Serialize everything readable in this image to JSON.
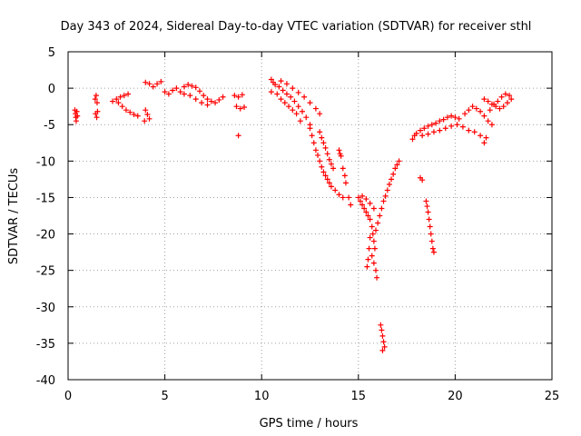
{
  "chart_data": {
    "type": "scatter",
    "title": "Day 343 of 2024, Sidereal Day-to-day VTEC variation (SDTVAR) for receiver sthl",
    "xlabel": "GPS time / hours",
    "ylabel": "SDTVAR / TECUs",
    "xlim": [
      0,
      25
    ],
    "ylim": [
      -40,
      5
    ],
    "xticks": [
      0,
      5,
      10,
      15,
      20,
      25
    ],
    "xtick_labels": [
      "0",
      "5",
      "10",
      "15",
      "20",
      "25"
    ],
    "yticks": [
      5,
      0,
      -5,
      -10,
      -15,
      -20,
      -25,
      -30,
      -35,
      -40
    ],
    "ytick_labels": [
      "5",
      "0",
      "-5",
      "-10",
      "-15",
      "-20",
      "-25",
      "-30",
      "-35",
      "-40"
    ],
    "grid": true,
    "marker": "+",
    "marker_color": "#ff0000",
    "series": [
      {
        "name": "sthl",
        "points": [
          [
            0.35,
            -3.0
          ],
          [
            0.38,
            -3.5
          ],
          [
            0.4,
            -4.0
          ],
          [
            0.42,
            -4.5
          ],
          [
            0.45,
            -3.2
          ],
          [
            0.48,
            -3.8
          ],
          [
            1.4,
            -1.5
          ],
          [
            1.45,
            -1.0
          ],
          [
            1.5,
            -2.0
          ],
          [
            1.42,
            -3.5
          ],
          [
            1.48,
            -4.0
          ],
          [
            1.52,
            -3.2
          ],
          [
            2.3,
            -1.8
          ],
          [
            2.5,
            -1.5
          ],
          [
            2.7,
            -1.2
          ],
          [
            2.9,
            -1.0
          ],
          [
            3.1,
            -0.8
          ],
          [
            2.6,
            -2.0
          ],
          [
            2.8,
            -2.5
          ],
          [
            3.0,
            -3.0
          ],
          [
            3.2,
            -3.3
          ],
          [
            3.4,
            -3.6
          ],
          [
            3.6,
            -3.8
          ],
          [
            4.0,
            0.8
          ],
          [
            4.2,
            0.6
          ],
          [
            4.4,
            0.2
          ],
          [
            4.6,
            0.6
          ],
          [
            4.8,
            0.9
          ],
          [
            4.0,
            -3.0
          ],
          [
            4.1,
            -3.6
          ],
          [
            4.2,
            -4.2
          ],
          [
            3.95,
            -4.5
          ],
          [
            5.0,
            -0.5
          ],
          [
            5.2,
            -0.8
          ],
          [
            5.4,
            -0.3
          ],
          [
            5.6,
            0.0
          ],
          [
            5.8,
            -0.5
          ],
          [
            6.0,
            0.2
          ],
          [
            6.2,
            0.5
          ],
          [
            6.4,
            0.3
          ],
          [
            6.6,
            0.1
          ],
          [
            6.8,
            -0.4
          ],
          [
            7.0,
            -1.0
          ],
          [
            7.2,
            -1.5
          ],
          [
            7.4,
            -1.8
          ],
          [
            7.6,
            -2.0
          ],
          [
            7.8,
            -1.6
          ],
          [
            8.0,
            -1.2
          ],
          [
            6.0,
            -0.8
          ],
          [
            6.3,
            -1.0
          ],
          [
            6.6,
            -1.5
          ],
          [
            6.9,
            -2.0
          ],
          [
            7.2,
            -2.3
          ],
          [
            8.6,
            -1.0
          ],
          [
            8.8,
            -1.2
          ],
          [
            9.0,
            -0.9
          ],
          [
            8.7,
            -2.5
          ],
          [
            8.9,
            -2.8
          ],
          [
            9.1,
            -2.6
          ],
          [
            8.8,
            -6.5
          ],
          [
            10.5,
            1.2
          ],
          [
            10.6,
            0.8
          ],
          [
            10.7,
            0.5
          ],
          [
            10.9,
            0.2
          ],
          [
            11.1,
            -0.3
          ],
          [
            11.3,
            -0.8
          ],
          [
            11.5,
            -1.2
          ],
          [
            11.7,
            -1.8
          ],
          [
            11.9,
            -2.5
          ],
          [
            12.1,
            -3.2
          ],
          [
            12.3,
            -4.0
          ],
          [
            12.5,
            -5.0
          ],
          [
            10.5,
            -0.5
          ],
          [
            10.8,
            -0.8
          ],
          [
            11.0,
            -1.5
          ],
          [
            11.2,
            -2.0
          ],
          [
            11.4,
            -2.5
          ],
          [
            11.6,
            -3.0
          ],
          [
            11.8,
            -3.5
          ],
          [
            12.0,
            -4.5
          ],
          [
            11.0,
            1.0
          ],
          [
            11.3,
            0.6
          ],
          [
            11.6,
            0.0
          ],
          [
            11.9,
            -0.6
          ],
          [
            12.2,
            -1.2
          ],
          [
            12.5,
            -2.0
          ],
          [
            12.8,
            -2.8
          ],
          [
            13.0,
            -3.5
          ],
          [
            12.5,
            -5.5
          ],
          [
            12.6,
            -6.5
          ],
          [
            12.7,
            -7.5
          ],
          [
            12.8,
            -8.5
          ],
          [
            12.9,
            -9.2
          ],
          [
            13.0,
            -10.0
          ],
          [
            13.1,
            -10.8
          ],
          [
            13.2,
            -11.5
          ],
          [
            13.3,
            -12.0
          ],
          [
            13.4,
            -12.5
          ],
          [
            13.5,
            -13.0
          ],
          [
            13.6,
            -13.5
          ],
          [
            13.8,
            -14.0
          ],
          [
            14.0,
            -14.6
          ],
          [
            14.2,
            -15.0
          ],
          [
            13.0,
            -6.0
          ],
          [
            13.1,
            -6.8
          ],
          [
            13.2,
            -7.5
          ],
          [
            13.3,
            -8.2
          ],
          [
            13.4,
            -9.0
          ],
          [
            13.5,
            -9.8
          ],
          [
            13.6,
            -10.4
          ],
          [
            13.7,
            -11.0
          ],
          [
            14.0,
            -8.5
          ],
          [
            14.05,
            -9.0
          ],
          [
            14.1,
            -9.3
          ],
          [
            14.2,
            -11.0
          ],
          [
            14.3,
            -12.0
          ],
          [
            14.35,
            -13.0
          ],
          [
            14.5,
            -15.0
          ],
          [
            14.6,
            -16.0
          ],
          [
            15.0,
            -15.0
          ],
          [
            15.1,
            -15.5
          ],
          [
            15.2,
            -16.0
          ],
          [
            15.3,
            -16.5
          ],
          [
            15.4,
            -17.0
          ],
          [
            15.5,
            -17.5
          ],
          [
            15.6,
            -18.0
          ],
          [
            15.7,
            -19.0
          ],
          [
            15.75,
            -20.0
          ],
          [
            15.8,
            -21.0
          ],
          [
            15.85,
            -22.0
          ],
          [
            15.6,
            -20.5
          ],
          [
            15.55,
            -22.0
          ],
          [
            15.5,
            -23.5
          ],
          [
            15.45,
            -24.5
          ],
          [
            15.7,
            -23.0
          ],
          [
            15.8,
            -24.0
          ],
          [
            15.9,
            -25.0
          ],
          [
            15.95,
            -26.0
          ],
          [
            15.9,
            -19.5
          ],
          [
            16.0,
            -18.5
          ],
          [
            16.1,
            -17.5
          ],
          [
            16.2,
            -16.5
          ],
          [
            16.3,
            -15.5
          ],
          [
            16.4,
            -14.8
          ],
          [
            16.5,
            -14.0
          ],
          [
            16.6,
            -13.2
          ],
          [
            16.7,
            -12.5
          ],
          [
            16.8,
            -11.8
          ],
          [
            16.9,
            -11.0
          ],
          [
            17.0,
            -10.5
          ],
          [
            17.1,
            -10.0
          ],
          [
            15.2,
            -14.8
          ],
          [
            15.4,
            -15.2
          ],
          [
            15.6,
            -15.8
          ],
          [
            15.8,
            -16.5
          ],
          [
            16.15,
            -32.5
          ],
          [
            16.2,
            -33.2
          ],
          [
            16.25,
            -34.0
          ],
          [
            16.3,
            -34.8
          ],
          [
            16.35,
            -35.5
          ],
          [
            16.25,
            -36.0
          ],
          [
            18.2,
            -12.3
          ],
          [
            18.3,
            -12.6
          ],
          [
            18.5,
            -15.5
          ],
          [
            18.55,
            -16.2
          ],
          [
            18.6,
            -17.0
          ],
          [
            18.65,
            -18.0
          ],
          [
            18.7,
            -19.0
          ],
          [
            18.75,
            -20.0
          ],
          [
            18.8,
            -21.0
          ],
          [
            18.85,
            -22.0
          ],
          [
            18.9,
            -22.5
          ],
          [
            17.8,
            -7.0
          ],
          [
            17.9,
            -6.5
          ],
          [
            18.0,
            -6.2
          ],
          [
            18.2,
            -5.8
          ],
          [
            18.4,
            -5.5
          ],
          [
            18.6,
            -5.2
          ],
          [
            18.8,
            -5.0
          ],
          [
            19.0,
            -4.8
          ],
          [
            19.2,
            -4.5
          ],
          [
            19.4,
            -4.3
          ],
          [
            19.6,
            -4.0
          ],
          [
            19.8,
            -3.8
          ],
          [
            20.0,
            -4.0
          ],
          [
            20.2,
            -4.2
          ],
          [
            18.3,
            -6.5
          ],
          [
            18.6,
            -6.3
          ],
          [
            18.9,
            -6.0
          ],
          [
            19.2,
            -5.8
          ],
          [
            19.5,
            -5.5
          ],
          [
            19.8,
            -5.2
          ],
          [
            20.1,
            -5.0
          ],
          [
            20.4,
            -5.3
          ],
          [
            20.7,
            -5.8
          ],
          [
            21.0,
            -6.0
          ],
          [
            21.3,
            -6.5
          ],
          [
            21.5,
            -7.5
          ],
          [
            21.6,
            -6.8
          ],
          [
            20.5,
            -3.5
          ],
          [
            20.7,
            -3.0
          ],
          [
            20.9,
            -2.5
          ],
          [
            21.1,
            -2.8
          ],
          [
            21.3,
            -3.2
          ],
          [
            21.5,
            -3.8
          ],
          [
            21.7,
            -4.5
          ],
          [
            21.9,
            -5.0
          ],
          [
            21.5,
            -1.5
          ],
          [
            21.7,
            -1.8
          ],
          [
            21.9,
            -2.2
          ],
          [
            22.1,
            -2.5
          ],
          [
            22.3,
            -2.8
          ],
          [
            22.5,
            -2.5
          ],
          [
            22.7,
            -2.0
          ],
          [
            22.9,
            -1.5
          ],
          [
            22.8,
            -1.0
          ],
          [
            22.6,
            -0.8
          ],
          [
            22.4,
            -1.2
          ],
          [
            22.2,
            -1.8
          ],
          [
            22.0,
            -2.2
          ],
          [
            21.8,
            -3.0
          ]
        ]
      }
    ]
  }
}
